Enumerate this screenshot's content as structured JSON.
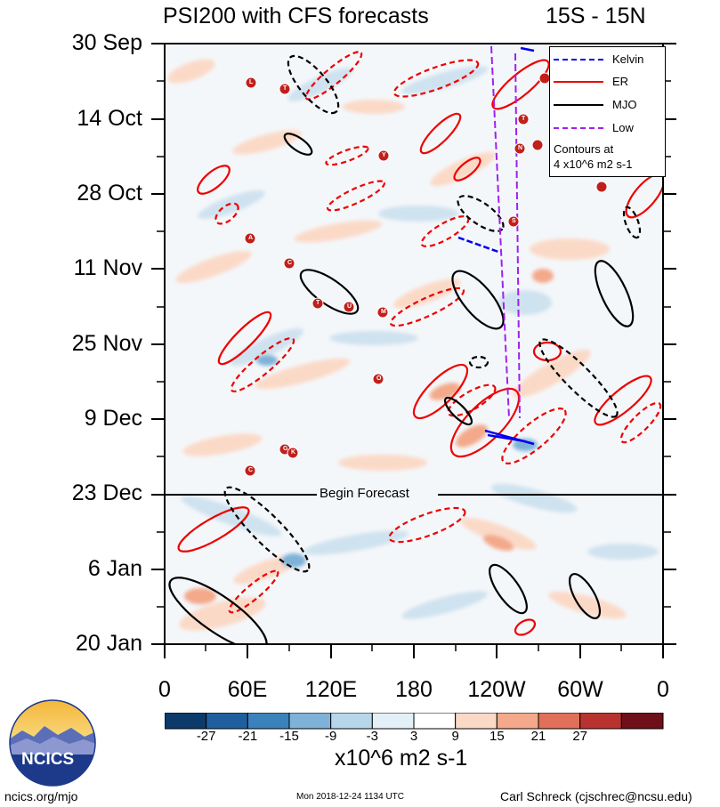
{
  "header": {
    "title": "PSI200 with CFS forecasts",
    "region": "15S - 15N"
  },
  "chart_data": {
    "type": "heatmap",
    "title": "PSI200 with CFS forecasts",
    "subtitle": "15S - 15N",
    "x_tick_labels": [
      "0",
      "60E",
      "120E",
      "180",
      "120W",
      "60W",
      "0"
    ],
    "y_tick_labels": [
      "30 Sep",
      "14 Oct",
      "28 Oct",
      "11 Nov",
      "25 Nov",
      "9 Dec",
      "23 Dec",
      "6 Jan",
      "20 Jan"
    ],
    "xlim": [
      0,
      360
    ],
    "ylim": [
      "30 Sep",
      "20 Jan"
    ],
    "forecast_start": "23 Dec",
    "forecast_label": "Begin Forecast",
    "colorbar": {
      "levels": [
        -27,
        -21,
        -15,
        -9,
        -3,
        3,
        9,
        15,
        21,
        27
      ],
      "tick_labels": [
        "-27",
        "-21",
        "-15",
        "-9",
        "-3",
        "3",
        "9",
        "15",
        "21",
        "27"
      ],
      "colors": [
        "#0b3a6b",
        "#1f5f9e",
        "#3b82bd",
        "#7fb2d8",
        "#b7d6ea",
        "#e4f0f7",
        "#ffffff",
        "#fbd9c7",
        "#f3a98a",
        "#e0705a",
        "#b8332f",
        "#6e0f1a"
      ],
      "units": "x10^6 m2 s-1"
    },
    "legend": {
      "position": "top-right",
      "entries": [
        {
          "name": "Kelvin",
          "color": "#0000ee",
          "style": "dashed"
        },
        {
          "name": "ER",
          "color": "#ee0000",
          "style": "solid"
        },
        {
          "name": "MJO",
          "color": "#000000",
          "style": "solid"
        },
        {
          "name": "Low",
          "color": "#a020f0",
          "style": "dashed"
        }
      ],
      "note_line1": "Contours at",
      "note_line2": "4 x10^6 m2 s-1"
    },
    "storm_labels": [
      "L",
      "T",
      "Y",
      "A",
      "C",
      "T",
      "U",
      "M",
      "O",
      "K",
      "C",
      "S",
      "N",
      "G",
      "T"
    ]
  },
  "footer": {
    "site": "ncics.org/mjo",
    "timestamp": "Mon 2018-12-24 1134 UTC",
    "author": "Carl Schreck (cjschrec@ncsu.edu)",
    "logo_text": "NCICS"
  },
  "icons": {
    "logo": "ncics-logo-icon",
    "storm": "tropical-cyclone-icon"
  }
}
